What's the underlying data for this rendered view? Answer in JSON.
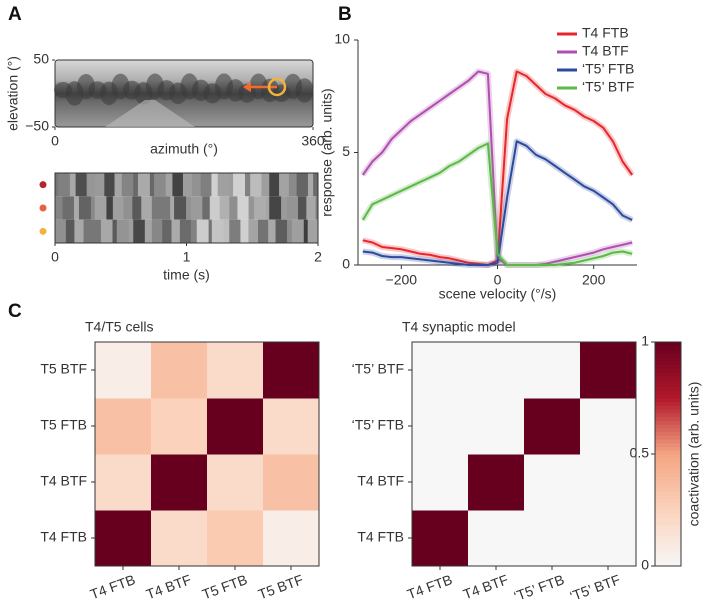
{
  "chart_data": [
    {
      "type": "image",
      "panel": "A",
      "xlabel": "azimuth (°)",
      "ylabel": "elevation (°)",
      "xlim": [
        0,
        360
      ],
      "xticks": [
        0,
        360
      ],
      "ylim": [
        -50,
        50
      ],
      "yticks": [
        50,
        {
          "value": -50,
          "label": "−50"
        }
      ]
    },
    {
      "type": "image",
      "xlabel": "time (s)",
      "xlim": [
        0,
        2
      ],
      "xticks": [
        0,
        1,
        2
      ],
      "rows": [
        {
          "color": "#b5262b"
        },
        {
          "color": "#e8603c"
        },
        {
          "color": "#f2b33d"
        }
      ]
    },
    {
      "type": "line",
      "panel": "B",
      "xlabel": "scene velocity (°/s)",
      "ylabel": "response (arb. units)",
      "xlim": [
        -290,
        290
      ],
      "xticks": [
        {
          "value": -200,
          "label": "−200"
        },
        0,
        200
      ],
      "ylim": [
        0,
        10
      ],
      "yticks": [
        0,
        5,
        10
      ],
      "legend": "top-right",
      "x": [
        -280,
        -260,
        -240,
        -220,
        -200,
        -180,
        -160,
        -140,
        -120,
        -100,
        -80,
        -60,
        -40,
        -20,
        0,
        20,
        40,
        60,
        80,
        100,
        120,
        140,
        160,
        180,
        200,
        220,
        240,
        260,
        280
      ],
      "series": [
        {
          "name": "T4 FTB",
          "color": "#e8262b",
          "values": [
            1.1,
            1.0,
            0.8,
            0.75,
            0.7,
            0.6,
            0.5,
            0.45,
            0.35,
            0.3,
            0.2,
            0.1,
            0.05,
            0,
            0.2,
            6.5,
            8.6,
            8.4,
            8.0,
            7.6,
            7.4,
            7.1,
            6.9,
            6.6,
            6.4,
            6.1,
            5.5,
            4.6,
            4.0
          ]
        },
        {
          "name": "T4 BTF",
          "color": "#b04fb0",
          "values": [
            4.0,
            4.6,
            5.0,
            5.6,
            6.0,
            6.4,
            6.7,
            7.0,
            7.3,
            7.6,
            7.9,
            8.2,
            8.6,
            8.5,
            0.3,
            0,
            0,
            0,
            0,
            0.05,
            0.15,
            0.25,
            0.35,
            0.45,
            0.55,
            0.7,
            0.8,
            0.9,
            1.0
          ]
        },
        {
          "name": "‘T5’ FTB",
          "color": "#2e4a9e",
          "values": [
            0.6,
            0.55,
            0.4,
            0.35,
            0.35,
            0.3,
            0.25,
            0.2,
            0.15,
            0.1,
            0.05,
            0,
            0,
            0,
            0.1,
            3.0,
            5.5,
            5.3,
            4.9,
            4.7,
            4.4,
            4.1,
            3.8,
            3.5,
            3.3,
            3.0,
            2.7,
            2.2,
            2.0
          ]
        },
        {
          "name": "‘T5’ BTF",
          "color": "#5cb946",
          "values": [
            2.0,
            2.7,
            2.9,
            3.1,
            3.3,
            3.5,
            3.7,
            3.9,
            4.1,
            4.4,
            4.6,
            4.9,
            5.2,
            5.4,
            0.5,
            0,
            0,
            0,
            0,
            0,
            0,
            0.05,
            0.1,
            0.2,
            0.3,
            0.4,
            0.55,
            0.6,
            0.5
          ]
        }
      ]
    },
    {
      "type": "heatmap",
      "panel": "C",
      "title": "T4/T5 cells",
      "x_categories": [
        "T4 FTB",
        "T4 BTF",
        "T5 FTB",
        "T5 BTF"
      ],
      "y_categories": [
        "T4 FTB",
        "T4 BTF",
        "T5 FTB",
        "T5 BTF"
      ],
      "values": [
        [
          1,
          0.2,
          0.3,
          0.07
        ],
        [
          0.2,
          1,
          0.2,
          0.35
        ],
        [
          0.35,
          0.25,
          1,
          0.2
        ],
        [
          0.07,
          0.35,
          0.2,
          1
        ]
      ],
      "zlim": [
        0,
        1
      ],
      "colormap": [
        "#f7f7f7",
        "#fbd3bd",
        "#f4a582",
        "#b2182b",
        "#67001f"
      ]
    },
    {
      "type": "heatmap",
      "title": "T4 synaptic model",
      "x_categories": [
        "T4 FTB",
        "T4 BTF",
        "‘T5’ FTB",
        "‘T5’ BTF"
      ],
      "y_categories": [
        "T4 FTB",
        "T4 BTF",
        "‘T5’ FTB",
        "‘T5’ BTF"
      ],
      "values": [
        [
          1,
          0,
          0,
          0
        ],
        [
          0,
          1,
          0,
          0
        ],
        [
          0,
          0,
          1,
          0
        ],
        [
          0,
          0,
          0,
          1
        ]
      ],
      "zlim": [
        0,
        1
      ],
      "colormap": [
        "#f7f7f7",
        "#fbd3bd",
        "#f4a582",
        "#b2182b",
        "#67001f"
      ],
      "colorbar": {
        "label": "coactivation (arb. units)",
        "ticks": [
          0,
          0.5,
          1
        ]
      }
    }
  ]
}
